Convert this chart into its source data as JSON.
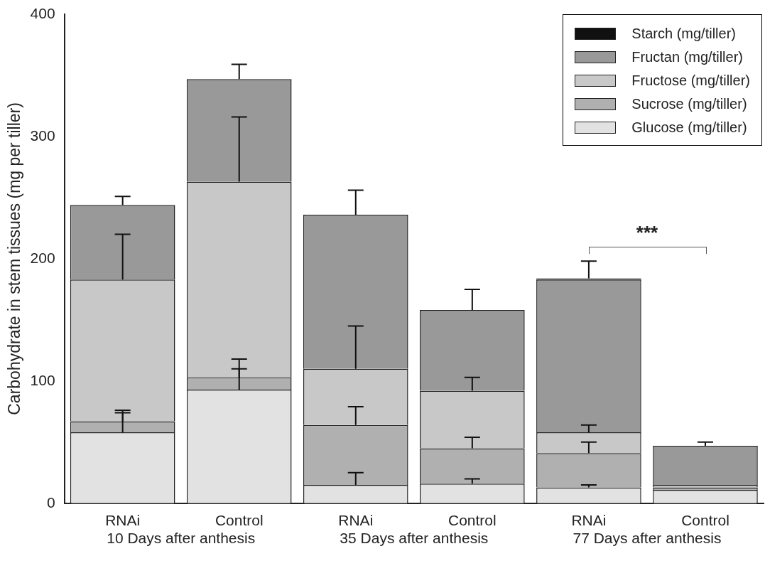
{
  "chart_data": {
    "type": "bar",
    "stacked": true,
    "ylabel": "Carbohydrate in stem tissues (mg per tiller)",
    "categories": [
      "RNAi",
      "Control",
      "RNAi",
      "Control",
      "RNAi",
      "Control"
    ],
    "series": [
      {
        "name": "Glucose (mg/tiller)",
        "color": "#e2e2e2",
        "values": [
          58,
          93,
          15,
          16,
          13,
          11
        ],
        "errors": [
          [
            58,
            74
          ],
          [
            93,
            110
          ],
          [
            15,
            25
          ],
          [
            16,
            20
          ],
          [
            13,
            15
          ],
          null
        ]
      },
      {
        "name": "Sucrose (mg/tiller)",
        "color": "#b0b0b0",
        "values": [
          9,
          10,
          49,
          29,
          28,
          2
        ],
        "errors": [
          [
            67,
            76
          ],
          [
            103,
            118
          ],
          [
            64,
            79
          ],
          [
            45,
            54
          ],
          [
            41,
            50
          ],
          null
        ]
      },
      {
        "name": "Fructose (mg/tiller)",
        "color": "#c8c8c8",
        "values": [
          116,
          160,
          46,
          47,
          17,
          2
        ],
        "errors": [
          [
            183,
            220
          ],
          [
            263,
            316
          ],
          [
            110,
            145
          ],
          [
            92,
            103
          ],
          [
            58,
            64
          ],
          null
        ]
      },
      {
        "name": "Fructan (mg/tiller)",
        "color": "#999999",
        "values": [
          61,
          84,
          126,
          66,
          125,
          32
        ],
        "errors": [
          [
            244,
            251
          ],
          [
            347,
            359
          ],
          [
            236,
            256
          ],
          [
            158,
            175
          ],
          null,
          [
            47,
            50
          ]
        ]
      },
      {
        "name": "Starch (mg/tiller)",
        "color": "#111111",
        "values": [
          0,
          0,
          0,
          0,
          1,
          0
        ],
        "errors": [
          null,
          null,
          null,
          null,
          [
            184,
            198
          ],
          null
        ]
      }
    ],
    "ylim": [
      0,
      400
    ],
    "yticks": [
      0,
      100,
      200,
      300,
      400
    ],
    "grid": false,
    "legend": "top right",
    "annotations": [
      "***",
      "10 Days after anthesis",
      "35 Days after anthesis",
      "77 Days after anthesis"
    ]
  }
}
